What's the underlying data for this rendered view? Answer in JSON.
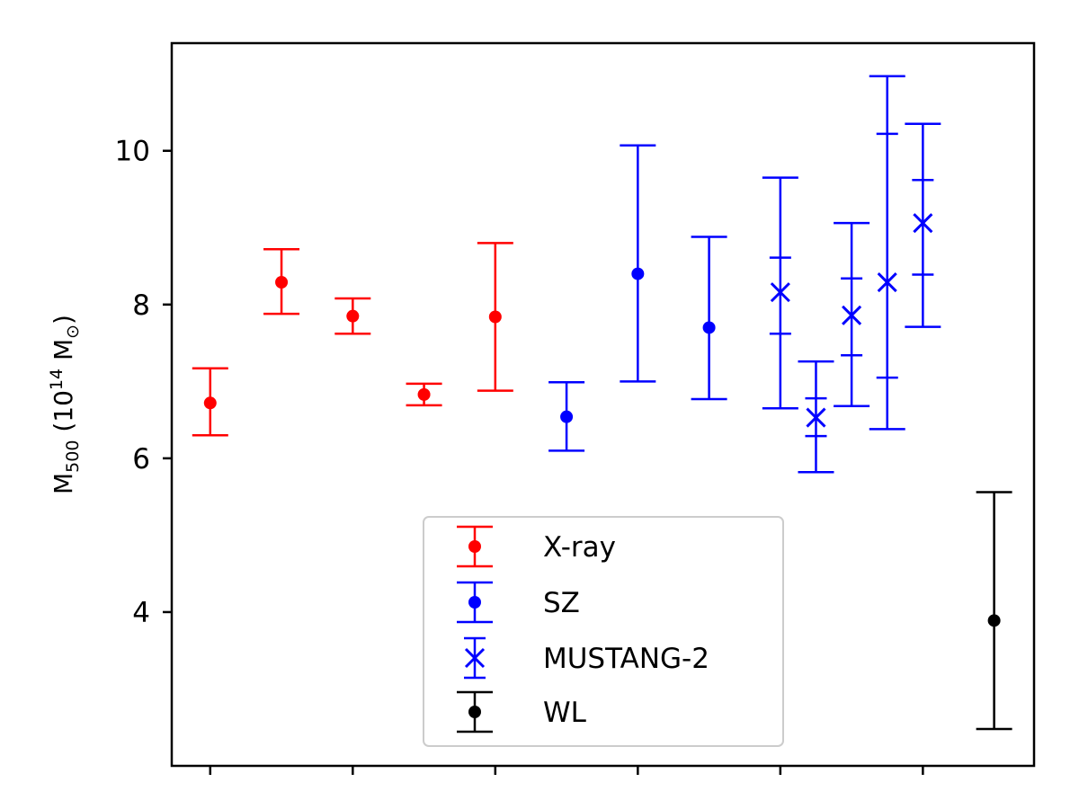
{
  "chart_data": {
    "type": "scatter",
    "title": "",
    "xlabel": "",
    "ylabel_main": "M",
    "ylabel_sub": "500",
    "ylabel_rest1": " (10",
    "ylabel_sup": "14",
    "ylabel_rest2": " M",
    "ylabel_solar": "⊙",
    "ylabel_close": ")",
    "ylim": [
      2.0,
      11.4
    ],
    "xlim": [
      -0.27,
      5.78
    ],
    "yticks": [
      4,
      6,
      8,
      10
    ],
    "xticks": [
      0,
      1,
      2,
      3,
      4,
      5
    ],
    "grid": false,
    "legend_position": "lower center",
    "series": [
      {
        "name": "X-ray",
        "color": "#ff0000",
        "marker": "dot",
        "points": [
          {
            "x": 0.0,
            "y": 6.72,
            "ylow": 6.3,
            "yhigh": 7.17
          },
          {
            "x": 0.5,
            "y": 8.29,
            "ylow": 7.88,
            "yhigh": 8.72
          },
          {
            "x": 1.0,
            "y": 7.85,
            "ylow": 7.62,
            "yhigh": 8.08
          },
          {
            "x": 1.5,
            "y": 6.83,
            "ylow": 6.69,
            "yhigh": 6.97
          },
          {
            "x": 2.0,
            "y": 7.84,
            "ylow": 6.88,
            "yhigh": 8.8
          }
        ]
      },
      {
        "name": "SZ",
        "color": "#0000ff",
        "marker": "dot",
        "points": [
          {
            "x": 2.5,
            "y": 6.54,
            "ylow": 6.1,
            "yhigh": 6.99
          },
          {
            "x": 3.0,
            "y": 8.4,
            "ylow": 7.0,
            "yhigh": 10.07
          },
          {
            "x": 3.5,
            "y": 7.7,
            "ylow": 6.77,
            "yhigh": 8.88
          }
        ]
      },
      {
        "name": "MUSTANG-2",
        "color": "#0000ff",
        "marker": "x",
        "points": [
          {
            "x": 4.0,
            "y": 8.16,
            "ylow": 6.65,
            "yhigh": 9.65,
            "ylow_inner": 7.62,
            "yhigh_inner": 8.61
          },
          {
            "x": 4.25,
            "y": 6.53,
            "ylow": 5.82,
            "yhigh": 7.26,
            "ylow_inner": 6.29,
            "yhigh_inner": 6.78
          },
          {
            "x": 4.5,
            "y": 7.86,
            "ylow": 6.68,
            "yhigh": 9.06,
            "ylow_inner": 7.34,
            "yhigh_inner": 8.34
          },
          {
            "x": 4.75,
            "y": 8.29,
            "ylow": 6.38,
            "yhigh": 10.97,
            "ylow_inner": 7.05,
            "yhigh_inner": 10.22
          },
          {
            "x": 5.0,
            "y": 9.06,
            "ylow": 7.71,
            "yhigh": 10.35,
            "ylow_inner": 8.39,
            "yhigh_inner": 9.62
          }
        ]
      },
      {
        "name": "WL",
        "color": "#000000",
        "marker": "dot",
        "points": [
          {
            "x": 5.5,
            "y": 3.89,
            "ylow": 2.48,
            "yhigh": 5.56
          }
        ]
      }
    ]
  }
}
